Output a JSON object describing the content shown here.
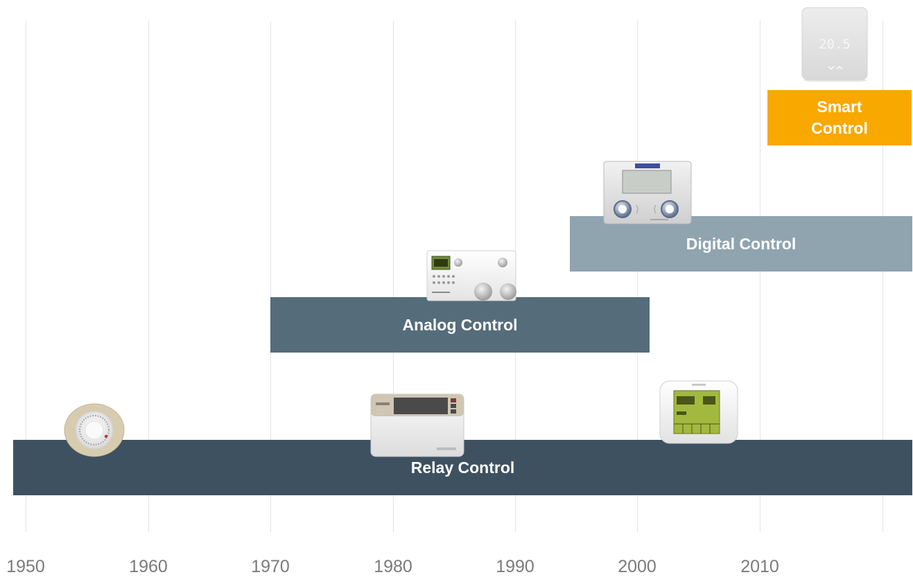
{
  "axis": {
    "years": [
      "1950",
      "1960",
      "1970",
      "1980",
      "1990",
      "2000",
      "2010"
    ]
  },
  "eras": [
    {
      "id": "relay",
      "label": "Relay Control",
      "start": 1949,
      "end": 2023,
      "level": 0,
      "color": "#3e5161"
    },
    {
      "id": "analog",
      "label": "Analog Control",
      "start": 1970,
      "end": 2001,
      "level": 1,
      "color": "#556c7a"
    },
    {
      "id": "digital",
      "label": "Digital Control",
      "start": 1994.5,
      "end": 2023,
      "level": 2,
      "color": "#8fa4af"
    },
    {
      "id": "smart",
      "label": "Smart\nControl",
      "start": 2010.6,
      "end": 2022.4,
      "level": 3,
      "color": "#f9a800"
    }
  ],
  "devices": [
    {
      "id": "round-dial-thermostat",
      "year": 1955.6,
      "era": "relay"
    },
    {
      "id": "relay-lcd-thermostat",
      "year": 1982,
      "era": "relay"
    },
    {
      "id": "touchscreen-thermostat",
      "year": 2005,
      "era": "relay"
    },
    {
      "id": "analog-timer-thermostat",
      "year": 1986.5,
      "era": "analog"
    },
    {
      "id": "digital-programmer",
      "year": 2000.8,
      "era": "digital"
    },
    {
      "id": "smart-thermostat",
      "year": 2016.2,
      "era": "smart",
      "display": "20.5"
    }
  ]
}
